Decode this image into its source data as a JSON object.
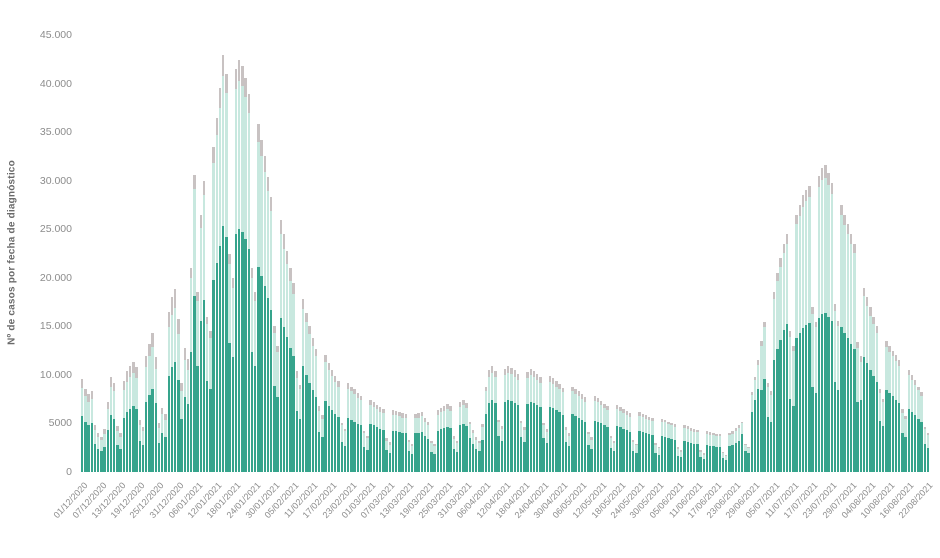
{
  "chart": {
    "y_axis": {
      "title": "Nº de casos por fecha de diagnóstico",
      "tick_labels": [
        "45.000",
        "40.000",
        "35.000",
        "30.000",
        "25.000",
        "20.000",
        "15.000",
        "10.000",
        "5000",
        "0"
      ],
      "max": 45000,
      "tick_step": 5000
    },
    "x_axis": {
      "tick_every_n_bars": 6,
      "tick_labels": [
        "01/12/2020",
        "07/12/2020",
        "13/12/2020",
        "19/12/2020",
        "25/12/2020",
        "31/12/2020",
        "06/01/2021",
        "12/01/2021",
        "18/01/2021",
        "24/01/2021",
        "30/01/2021",
        "05/02/2021",
        "11/02/2021",
        "17/02/2021",
        "23/02/2021",
        "01/03/2021",
        "07/03/2021",
        "13/03/2021",
        "19/03/2021",
        "25/03/2021",
        "31/03/2021",
        "06/04/2021",
        "12/04/2021",
        "18/04/2021",
        "24/04/2021",
        "30/04/2021",
        "06/05/2021",
        "12/05/2021",
        "18/05/2021",
        "24/05/2021",
        "30/05/2021",
        "05/06/2021",
        "11/06/2021",
        "17/06/2021",
        "23/06/2021",
        "29/06/2021",
        "05/07/2021",
        "11/07/2021",
        "17/07/2021",
        "23/07/2021",
        "29/07/2021",
        "04/08/2021",
        "10/08/2021",
        "16/08/2021",
        "22/08/2021"
      ]
    },
    "colors": {
      "dark_teal": "#36a48c",
      "light_teal": "#c8e8df",
      "gray": "#c8c2c2",
      "axis_text": "#8c8c8c",
      "background": "#ffffff"
    }
  },
  "chart_data": {
    "type": "bar",
    "stacked": true,
    "n_bars": 265,
    "x_start": "01/12/2020",
    "x_end": "22/08/2021",
    "ylim": [
      0,
      45000
    ],
    "grid": false,
    "legend": "none",
    "title": "",
    "xlabel": "",
    "ylabel": "Nº de casos por fecha de diagnóstico",
    "series": [
      {
        "name": "dark-teal-bottom-segment",
        "color": "#36a48c",
        "values": [
          5800,
          5200,
          4800,
          5000,
          2900,
          2400,
          2200,
          2600,
          4300,
          5900,
          5500,
          2800,
          2400,
          5600,
          6200,
          6500,
          6800,
          6500,
          3200,
          2800,
          7200,
          7900,
          8600,
          7100,
          3000,
          4000,
          3600,
          9900,
          10800,
          11300,
          9500,
          5500,
          7700,
          7000,
          12400,
          18100,
          10900,
          15600,
          17700,
          9400,
          8600,
          19800,
          21500,
          23300,
          25300,
          24200,
          13300,
          11800,
          24500,
          25000,
          24700,
          24000,
          23000,
          12400,
          10900,
          21100,
          20200,
          19200,
          17900,
          16700,
          8900,
          7700,
          15900,
          14900,
          13900,
          12800,
          11900,
          6300,
          5500,
          10900,
          10000,
          9200,
          8400,
          7700,
          4100,
          3600,
          7300,
          6800,
          6400,
          6000,
          5700,
          3100,
          2700,
          5600,
          5400,
          5200,
          4900,
          4800,
          2600,
          2300,
          4900,
          4800,
          4600,
          4400,
          4300,
          2300,
          2000,
          4200,
          4200,
          4100,
          4000,
          4000,
          2200,
          1900,
          4000,
          4000,
          4100,
          3700,
          3400,
          2100,
          1900,
          4200,
          4400,
          4500,
          4600,
          4500,
          2400,
          2100,
          4800,
          4900,
          4700,
          3500,
          2900,
          2400,
          2200,
          3300,
          6000,
          7100,
          7400,
          7100,
          3700,
          3200,
          7200,
          7400,
          7300,
          7100,
          6900,
          3600,
          3100,
          7000,
          7200,
          7100,
          6900,
          6700,
          3500,
          3000,
          6700,
          6600,
          6400,
          6200,
          5900,
          3100,
          2700,
          6000,
          5800,
          5600,
          5400,
          5200,
          2800,
          2400,
          5300,
          5200,
          5000,
          4800,
          4600,
          2500,
          2200,
          4700,
          4600,
          4400,
          4300,
          4100,
          2200,
          2000,
          4200,
          4100,
          4000,
          3900,
          3800,
          2000,
          1800,
          3700,
          3600,
          3500,
          3400,
          3300,
          1700,
          1500,
          3200,
          3100,
          3000,
          2900,
          2900,
          1500,
          1300,
          2800,
          2700,
          2700,
          2600,
          2600,
          1400,
          1200,
          2700,
          2800,
          3000,
          3200,
          3900,
          2200,
          2000,
          6200,
          7400,
          8600,
          8400,
          9600,
          5700,
          5100,
          11500,
          12700,
          13600,
          14600,
          15200,
          7500,
          6800,
          13800,
          14300,
          14800,
          15100,
          15300,
          8800,
          8100,
          15900,
          16300,
          16400,
          16000,
          15500,
          9300,
          8400,
          14900,
          14300,
          13800,
          13200,
          12700,
          7200,
          7400,
          11800,
          11200,
          10500,
          9900,
          9300,
          5300,
          4700,
          8400,
          8100,
          7800,
          7400,
          7100,
          4000,
          3600,
          6500,
          6200,
          5900,
          5500,
          5100,
          2900,
          2500
        ]
      },
      {
        "name": "light-teal-middle-segment",
        "color": "#c8e8df",
        "values": [
          2900,
          2600,
          2400,
          2500,
          1400,
          1200,
          1100,
          1300,
          2200,
          2900,
          2800,
          1400,
          1200,
          2800,
          3100,
          3300,
          3400,
          3200,
          1600,
          1400,
          3600,
          4000,
          4300,
          3500,
          1500,
          2000,
          1800,
          5000,
          5400,
          5600,
          4700,
          2800,
          3800,
          3500,
          7600,
          11000,
          6700,
          9500,
          10800,
          5800,
          5200,
          12000,
          13200,
          14200,
          15500,
          14800,
          8100,
          7200,
          14900,
          15300,
          15000,
          14600,
          14000,
          7600,
          6700,
          12900,
          12300,
          11700,
          11000,
          10200,
          5400,
          4700,
          8600,
          8100,
          7500,
          6900,
          6400,
          3400,
          3000,
          5900,
          5400,
          5000,
          4600,
          4200,
          2200,
          1900,
          4000,
          3700,
          3500,
          3300,
          3100,
          1700,
          1500,
          3000,
          2900,
          2800,
          2700,
          2600,
          1400,
          1200,
          2000,
          1900,
          1900,
          1800,
          1800,
          900,
          800,
          1700,
          1700,
          1700,
          1600,
          1600,
          900,
          800,
          1600,
          1600,
          1700,
          1500,
          1400,
          900,
          800,
          1700,
          1800,
          1800,
          1900,
          1800,
          1000,
          900,
          1900,
          2000,
          1900,
          1400,
          1100,
          900,
          800,
          1300,
          2300,
          2700,
          2800,
          2700,
          1400,
          1200,
          2800,
          2800,
          2800,
          2700,
          2600,
          1400,
          1200,
          2700,
          2800,
          2700,
          2600,
          2500,
          1300,
          1100,
          2600,
          2500,
          2400,
          2400,
          2300,
          1200,
          1000,
          2300,
          2200,
          2200,
          2100,
          2000,
          1100,
          900,
          2000,
          2000,
          1900,
          1800,
          1800,
          1000,
          800,
          1800,
          1700,
          1700,
          1600,
          1600,
          900,
          800,
          1600,
          1600,
          1500,
          1500,
          1500,
          800,
          700,
          1400,
          1500,
          1400,
          1400,
          1300,
          700,
          600,
          1300,
          1300,
          1200,
          1200,
          1200,
          600,
          500,
          1100,
          1100,
          1100,
          1100,
          1100,
          600,
          500,
          1100,
          1100,
          1200,
          1300,
          1100,
          600,
          500,
          1700,
          2100,
          2400,
          4600,
          5300,
          3100,
          2800,
          6300,
          7000,
          7500,
          8000,
          8300,
          6400,
          5700,
          11700,
          12100,
          12500,
          12800,
          13000,
          7500,
          6800,
          13400,
          13800,
          13900,
          13600,
          13100,
          7300,
          6600,
          11600,
          11100,
          10700,
          10300,
          9900,
          5600,
          3900,
          6300,
          5900,
          5600,
          5300,
          5000,
          2800,
          2500,
          4500,
          4300,
          4100,
          4000,
          3800,
          2100,
          1900,
          3500,
          3300,
          3100,
          2900,
          2700,
          1500,
          1300
        ]
      },
      {
        "name": "gray-top-segment",
        "color": "#c8c2c2",
        "values": [
          900,
          800,
          800,
          800,
          500,
          400,
          300,
          500,
          700,
          1000,
          900,
          500,
          400,
          1000,
          1100,
          1100,
          1100,
          1100,
          600,
          400,
          1200,
          1300,
          1400,
          1200,
          500,
          600,
          600,
          1600,
          1800,
          1900,
          1600,
          900,
          1300,
          1100,
          1000,
          1500,
          900,
          1400,
          1500,
          800,
          700,
          1700,
          1800,
          2000,
          2100,
          2000,
          1100,
          1000,
          2100,
          2100,
          2100,
          2000,
          1900,
          1000,
          900,
          1800,
          1700,
          1600,
          1500,
          1400,
          700,
          600,
          1500,
          1500,
          1400,
          1300,
          1200,
          700,
          500,
          1000,
          1000,
          800,
          800,
          800,
          500,
          400,
          700,
          700,
          600,
          600,
          600,
          300,
          200,
          600,
          500,
          500,
          500,
          400,
          200,
          200,
          500,
          500,
          400,
          500,
          400,
          300,
          300,
          500,
          400,
          400,
          500,
          400,
          200,
          200,
          400,
          500,
          400,
          400,
          400,
          200,
          200,
          500,
          400,
          500,
          500,
          500,
          300,
          200,
          500,
          500,
          500,
          300,
          300,
          300,
          200,
          300,
          500,
          700,
          700,
          600,
          300,
          300,
          600,
          700,
          600,
          700,
          600,
          300,
          300,
          600,
          600,
          600,
          600,
          600,
          300,
          300,
          600,
          600,
          600,
          500,
          500,
          300,
          300,
          500,
          600,
          500,
          500,
          500,
          200,
          300,
          500,
          400,
          400,
          400,
          400,
          200,
          200,
          400,
          400,
          400,
          400,
          400,
          200,
          100,
          400,
          300,
          400,
          300,
          300,
          200,
          100,
          400,
          300,
          300,
          200,
          300,
          200,
          200,
          300,
          300,
          300,
          300,
          200,
          200,
          200,
          300,
          300,
          200,
          200,
          200,
          100,
          100,
          200,
          300,
          300,
          300,
          200,
          100,
          100,
          300,
          300,
          500,
          500,
          600,
          400,
          400,
          700,
          800,
          900,
          900,
          1000,
          600,
          500,
          1000,
          1100,
          1200,
          1100,
          1200,
          700,
          600,
          1200,
          1200,
          1300,
          1200,
          1200,
          700,
          600,
          1000,
          1100,
          1000,
          1000,
          900,
          600,
          600,
          900,
          900,
          900,
          800,
          700,
          400,
          300,
          600,
          600,
          600,
          600,
          600,
          400,
          300,
          500,
          500,
          500,
          400,
          400,
          200,
          200
        ]
      }
    ]
  }
}
